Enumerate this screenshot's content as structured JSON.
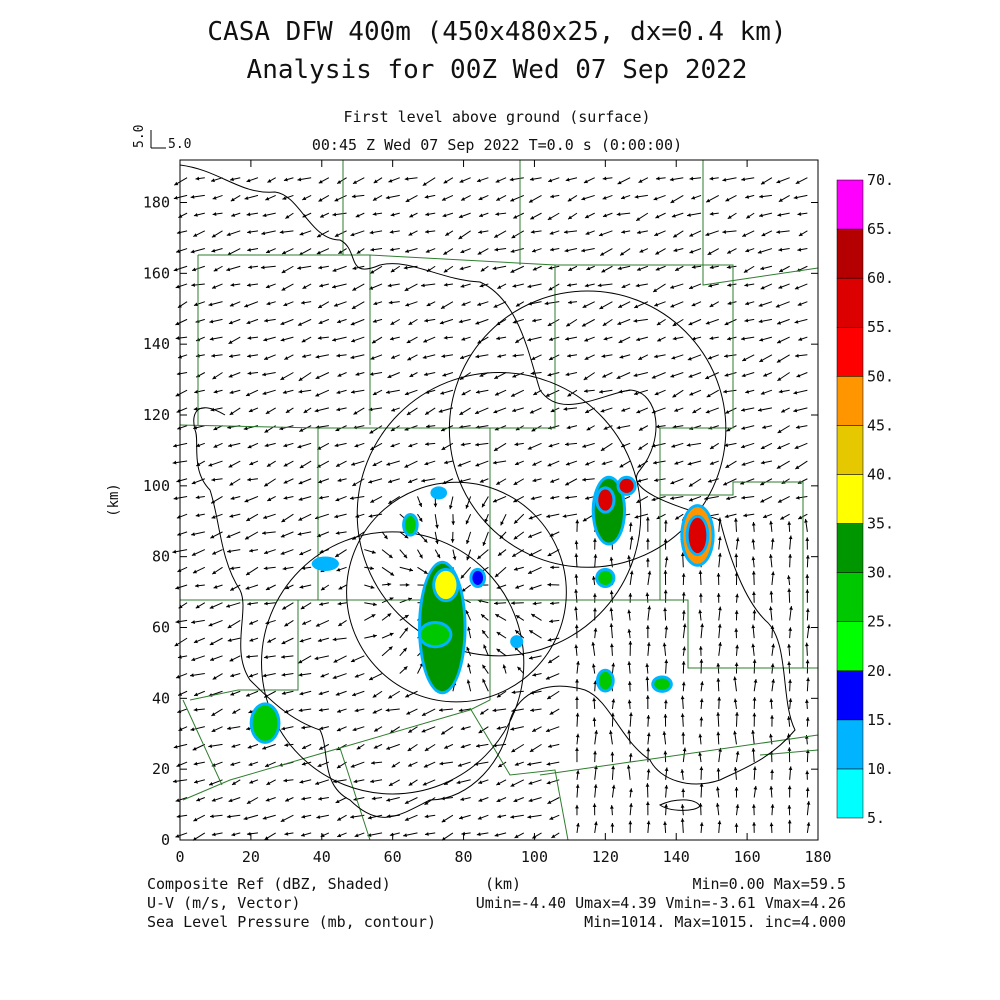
{
  "header": {
    "title_line1": "CASA DFW 400m (450x480x25, dx=0.4 km)",
    "title_line2": "Analysis for 00Z Wed 07 Sep 2022",
    "level": "First level above ground (surface)",
    "timestamp": "00:45 Z Wed 07 Sep 2022    T=0.0 s (0:00:00)",
    "ref_vector_left": "5.0",
    "ref_vector_right": "5.0"
  },
  "footer": {
    "field1_label": "Composite Ref (dBZ, Shaded)",
    "field1_stats": "Min=0.00 Max=59.5",
    "field2_label": "U-V (m/s, Vector)",
    "field2_stats": "Umin=-4.40 Umax=4.39 Vmin=-3.61 Vmax=4.26",
    "field3_label": "Sea Level Pressure (mb, contour)",
    "field3_stats": "Min=1014. Max=1015. inc=4.000"
  },
  "chart_data": {
    "type": "heatmap",
    "xlabel": "(km)",
    "ylabel": "(km)",
    "xlim": [
      0,
      180
    ],
    "ylim": [
      0,
      192
    ],
    "x_ticks": [
      "0",
      "20",
      "40",
      "60",
      "80",
      "100",
      "120",
      "140",
      "160",
      "180"
    ],
    "y_ticks": [
      "0",
      "20",
      "40",
      "60",
      "80",
      "100",
      "120",
      "140",
      "160",
      "180"
    ],
    "colorbar": {
      "labels": [
        "5.",
        "10.",
        "15.",
        "20.",
        "25.",
        "30.",
        "35.",
        "40.",
        "45.",
        "50.",
        "55.",
        "60.",
        "65.",
        "70."
      ],
      "colors": [
        "#00ffff",
        "#00b4ff",
        "#0000ff",
        "#00ff00",
        "#00c800",
        "#009600",
        "#ffff00",
        "#e6c800",
        "#ff9600",
        "#ff0000",
        "#dc0000",
        "#b40000",
        "#ff00ff"
      ]
    },
    "radar_circles": [
      {
        "cx": 115,
        "cy": 116,
        "r": 39
      },
      {
        "cx": 90,
        "cy": 92,
        "r": 40
      },
      {
        "cx": 78,
        "cy": 70,
        "r": 31
      },
      {
        "cx": 60,
        "cy": 50,
        "r": 37
      }
    ],
    "echoes": [
      {
        "x": 74,
        "y": 60,
        "rx": 6,
        "ry": 18,
        "dbz": 30
      },
      {
        "x": 75,
        "y": 72,
        "rx": 3,
        "ry": 4,
        "dbz": 38
      },
      {
        "x": 72,
        "y": 58,
        "rx": 4,
        "ry": 3,
        "dbz": 28
      },
      {
        "x": 24,
        "y": 33,
        "rx": 3.5,
        "ry": 5,
        "dbz": 25
      },
      {
        "x": 121,
        "y": 93,
        "rx": 4,
        "ry": 9,
        "dbz": 30
      },
      {
        "x": 120,
        "y": 96,
        "rx": 2,
        "ry": 3,
        "dbz": 55
      },
      {
        "x": 126,
        "y": 100,
        "rx": 2,
        "ry": 2,
        "dbz": 55
      },
      {
        "x": 146,
        "y": 86,
        "rx": 4,
        "ry": 8,
        "dbz": 45
      },
      {
        "x": 146,
        "y": 86,
        "rx": 2.5,
        "ry": 5,
        "dbz": 58
      },
      {
        "x": 120,
        "y": 74,
        "rx": 2,
        "ry": 2,
        "dbz": 25
      },
      {
        "x": 120,
        "y": 45,
        "rx": 1.8,
        "ry": 2.5,
        "dbz": 25
      },
      {
        "x": 136,
        "y": 44,
        "rx": 2.2,
        "ry": 1.6,
        "dbz": 25
      },
      {
        "x": 65,
        "y": 89,
        "rx": 1.5,
        "ry": 2.5,
        "dbz": 25
      },
      {
        "x": 84,
        "y": 74,
        "rx": 1.5,
        "ry": 2,
        "dbz": 15
      },
      {
        "x": 41,
        "y": 78,
        "rx": 3,
        "ry": 1.2,
        "dbz": 12
      },
      {
        "x": 73,
        "y": 98,
        "rx": 1.5,
        "ry": 1,
        "dbz": 12
      },
      {
        "x": 95,
        "y": 56,
        "rx": 1,
        "ry": 1,
        "dbz": 12
      }
    ]
  }
}
